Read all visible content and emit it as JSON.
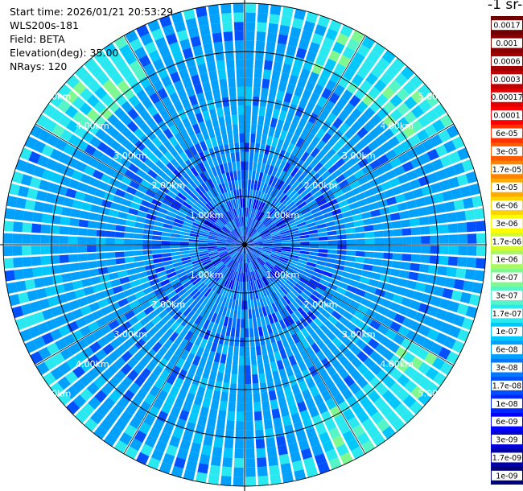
{
  "header": {
    "start_time": "Start time: 2026/01/21 20:53:29",
    "instrument": "WLS200s-181",
    "field": "Field: BETA",
    "elevation": "Elevation(deg): 35.00",
    "nrays": "NRays: 120"
  },
  "colorbar": {
    "title": "-1 sr-",
    "levels": [
      "1e-09",
      "1.7e-09",
      "3e-09",
      "6e-09",
      "1e-08",
      "1.7e-08",
      "3e-08",
      "6e-08",
      "1e-07",
      "1.7e-07",
      "3e-07",
      "6e-07",
      "1e-06",
      "1.7e-06",
      "3e-06",
      "6e-06",
      "1e-05",
      "1.7e-05",
      "3e-05",
      "6e-05",
      "0.0001",
      "0.00017",
      "0.0003",
      "0.0006",
      "0.001",
      "0.0017"
    ],
    "colors": [
      "#00007a",
      "#0000a8",
      "#0000d6",
      "#0000ff",
      "#0028ff",
      "#0050ff",
      "#0078ff",
      "#00a0ff",
      "#00c8ff",
      "#2ae8f0",
      "#55f5c8",
      "#80f890",
      "#aaf860",
      "#d5f830",
      "#ffff00",
      "#ffd200",
      "#ffaa00",
      "#ff8200",
      "#ff5a00",
      "#ff3200",
      "#ff0000",
      "#e00000",
      "#c00000",
      "#a00000",
      "#880000",
      "#700000"
    ]
  },
  "chart_data": {
    "type": "heatmap",
    "projection": "polar (PPI scan)",
    "field": "BETA",
    "elevation_deg": 35.0,
    "n_rays": 120,
    "max_range_km": 5.0,
    "range_rings_km": [
      1,
      2,
      3,
      4,
      5
    ],
    "ring_labels": [
      "1.00km",
      "2.00km",
      "3.00km",
      "4.00km",
      "5.00km"
    ],
    "grid": true,
    "colorbar_placement": "right",
    "typical_value": "3e-08 to 1e-07",
    "enhanced_sectors_value": "3e-07 to 3e-06",
    "enhanced_sectors_azimuth_deg": [
      [
        20,
        60
      ],
      [
        120,
        160
      ],
      [
        300,
        330
      ]
    ],
    "enhanced_range_km": [
      4.0,
      5.0
    ]
  }
}
